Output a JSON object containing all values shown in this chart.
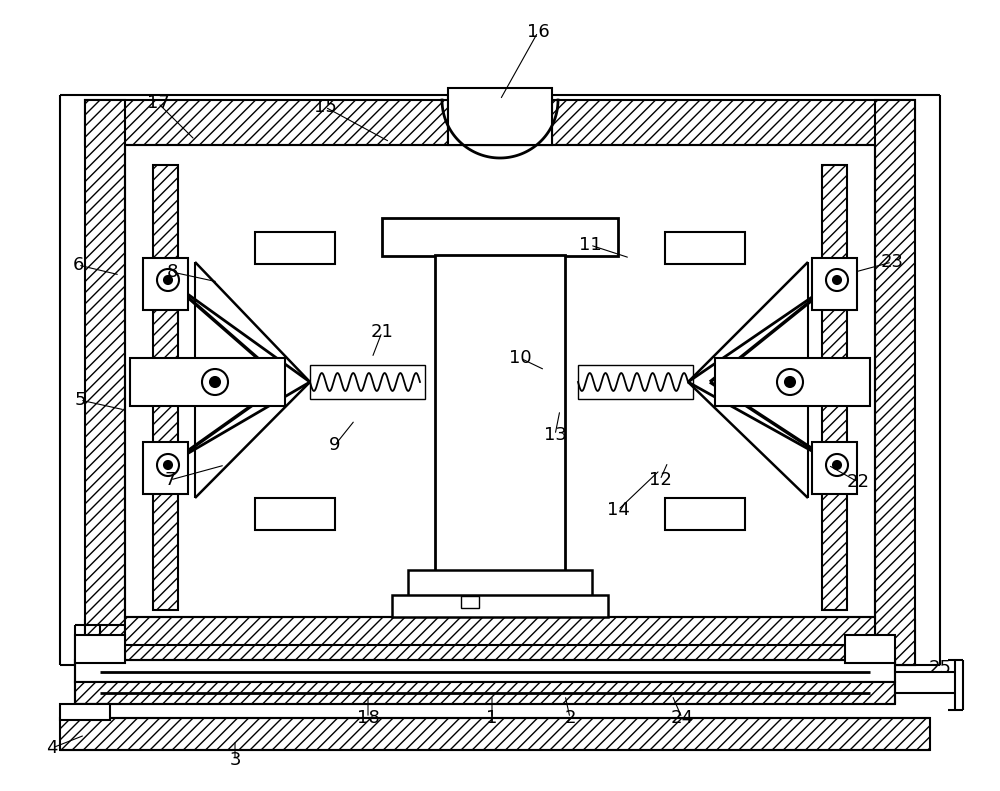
{
  "bg_color": "#ffffff",
  "line_color": "#000000",
  "fig_width": 10.0,
  "fig_height": 7.91,
  "annotations": [
    [
      "1",
      492,
      718,
      492,
      695
    ],
    [
      "2",
      570,
      718,
      565,
      695
    ],
    [
      "3",
      235,
      760,
      235,
      740
    ],
    [
      "4",
      52,
      748,
      85,
      735
    ],
    [
      "5",
      80,
      400,
      125,
      410
    ],
    [
      "6",
      78,
      265,
      120,
      275
    ],
    [
      "7",
      170,
      480,
      225,
      465
    ],
    [
      "8",
      172,
      272,
      218,
      282
    ],
    [
      "9",
      335,
      445,
      355,
      420
    ],
    [
      "10",
      520,
      358,
      545,
      370
    ],
    [
      "11",
      590,
      245,
      630,
      258
    ],
    [
      "12",
      660,
      480,
      668,
      462
    ],
    [
      "13",
      555,
      435,
      560,
      410
    ],
    [
      "14",
      618,
      510,
      660,
      470
    ],
    [
      "15",
      325,
      107,
      390,
      142
    ],
    [
      "16",
      538,
      32,
      500,
      100
    ],
    [
      "17",
      158,
      103,
      195,
      140
    ],
    [
      "18",
      368,
      718,
      368,
      695
    ],
    [
      "21",
      382,
      332,
      372,
      358
    ],
    [
      "22",
      858,
      482,
      828,
      465
    ],
    [
      "23",
      892,
      262,
      855,
      272
    ],
    [
      "24",
      682,
      718,
      672,
      695
    ],
    [
      "25",
      940,
      668,
      940,
      658
    ]
  ]
}
